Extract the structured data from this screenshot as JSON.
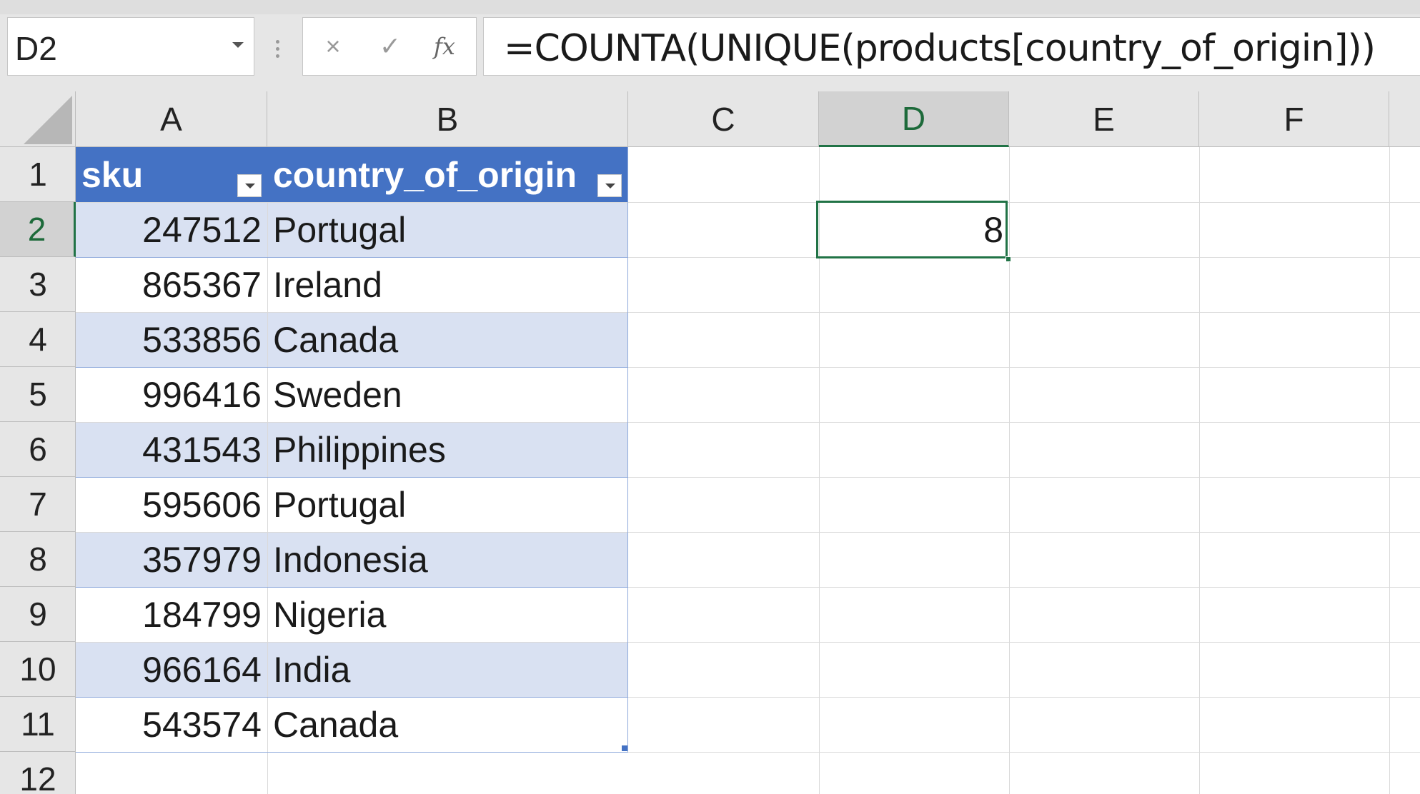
{
  "name_box": {
    "value": "D2"
  },
  "formula_bar": {
    "cancel_icon": "×",
    "enter_icon": "✓",
    "insert_function_label": "fx",
    "formula": "=COUNTA(UNIQUE(products[country_of_origin]))"
  },
  "columns": [
    "A",
    "B",
    "C",
    "D",
    "E",
    "F"
  ],
  "active_column": "D",
  "rows": [
    "1",
    "2",
    "3",
    "4",
    "5",
    "6",
    "7",
    "8",
    "9",
    "10",
    "11",
    "12"
  ],
  "active_row": "2",
  "table": {
    "name": "products",
    "headers": [
      "sku",
      "country_of_origin"
    ],
    "rows": [
      [
        "247512",
        "Portugal"
      ],
      [
        "865367",
        "Ireland"
      ],
      [
        "533856",
        "Canada"
      ],
      [
        "996416",
        "Sweden"
      ],
      [
        "431543",
        "Philippines"
      ],
      [
        "595606",
        "Portugal"
      ],
      [
        "357979",
        "Indonesia"
      ],
      [
        "184799",
        "Nigeria"
      ],
      [
        "966164",
        "India"
      ],
      [
        "543574",
        "Canada"
      ]
    ]
  },
  "cells": {
    "D2": "8"
  },
  "colors": {
    "table_header": "#4472c4",
    "table_band": "#d9e1f2",
    "selection": "#217346"
  }
}
